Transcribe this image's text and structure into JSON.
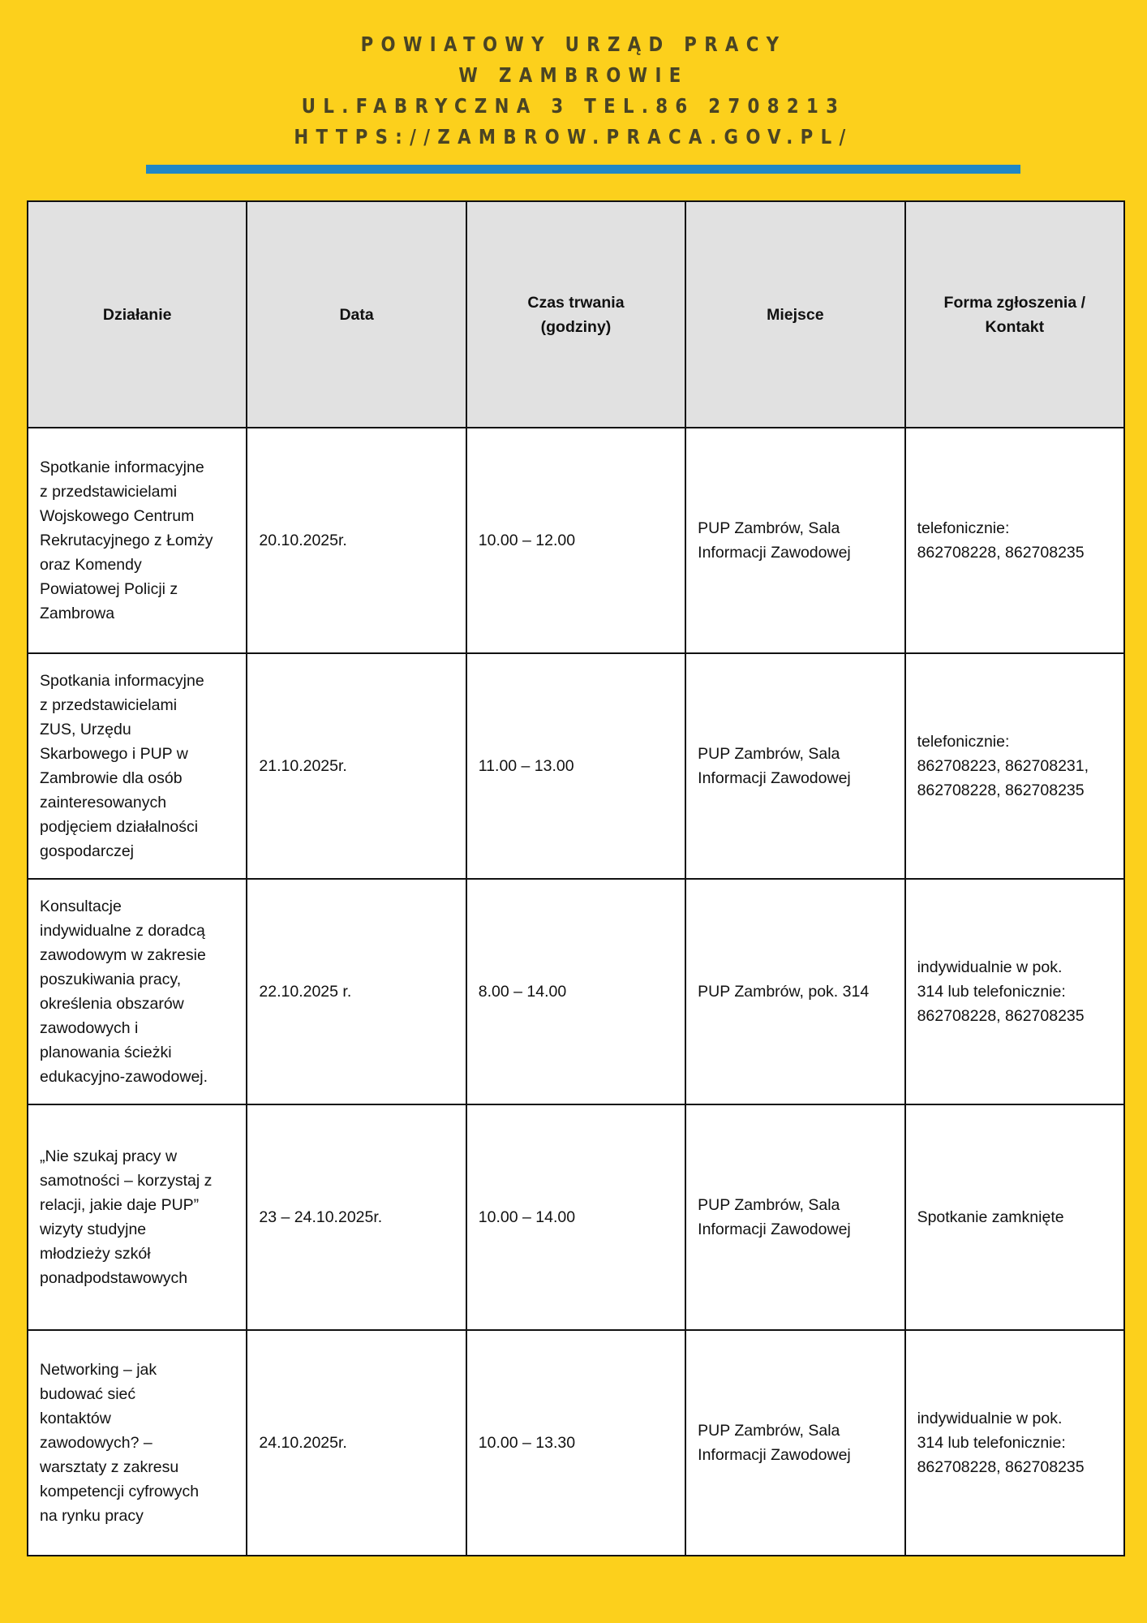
{
  "header": {
    "line1": "POWIATOWY URZĄD PRACY",
    "line2": "W ZAMBROWIE",
    "line3": "UL.FABRYCZNA 3 TEL.86 2708213",
    "line4": "HTTPS://ZAMBROW.PRACA.GOV.PL/"
  },
  "colors": {
    "background": "#fcd01c",
    "accent_bar": "#1f87c6",
    "header_cell": "#e1e1e1"
  },
  "table": {
    "columns": [
      "Działanie",
      "Data",
      "Czas trwania\n(godziny)",
      "Miejsce",
      "Forma zgłoszenia /\nKontakt"
    ],
    "rows": [
      [
        "Spotkanie informacyjne\nz przedstawicielami\nWojskowego Centrum\nRekrutacyjnego z Łomży\noraz Komendy\nPowiatowej Policji z\nZambrowa",
        "20.10.2025r.",
        "10.00 – 12.00",
        "PUP Zambrów, Sala\nInformacji Zawodowej",
        "telefonicznie:\n862708228, 862708235"
      ],
      [
        "Spotkania informacyjne\nz przedstawicielami\nZUS, Urzędu\nSkarbowego i PUP w\nZambrowie dla osób\nzainteresowanych\npodjęciem działalności\ngospodarczej",
        "21.10.2025r.",
        "11.00 – 13.00",
        "PUP Zambrów, Sala\nInformacji Zawodowej",
        "telefonicznie:\n862708223, 862708231,\n862708228, 862708235"
      ],
      [
        "Konsultacje\nindywidualne z doradcą\nzawodowym w zakresie\nposzukiwania pracy,\nokreślenia obszarów\nzawodowych i\nplanowania ścieżki\nedukacyjno-zawodowej.",
        "22.10.2025 r.",
        "8.00 – 14.00",
        "PUP Zambrów, pok. 314",
        "indywidualnie w pok.\n314 lub telefonicznie:\n862708228, 862708235"
      ],
      [
        "„Nie szukaj pracy w\nsamotności – korzystaj z\nrelacji, jakie daje PUP”\n wizyty studyjne\nmłodzieży szkół\nponadpodstawowych",
        "23 – 24.10.2025r.",
        "10.00 – 14.00",
        "PUP Zambrów, Sala\nInformacji Zawodowej",
        "Spotkanie zamknięte"
      ],
      [
        "Networking – jak\nbudować sieć\nkontaktów\nzawodowych? –\nwarsztaty z zakresu\nkompetencji cyfrowych\nna rynku pracy",
        "24.10.2025r.",
        "10.00 – 13.30",
        "PUP Zambrów, Sala\nInformacji Zawodowej",
        "indywidualnie w pok.\n314 lub telefonicznie:\n862708228, 862708235"
      ]
    ]
  }
}
